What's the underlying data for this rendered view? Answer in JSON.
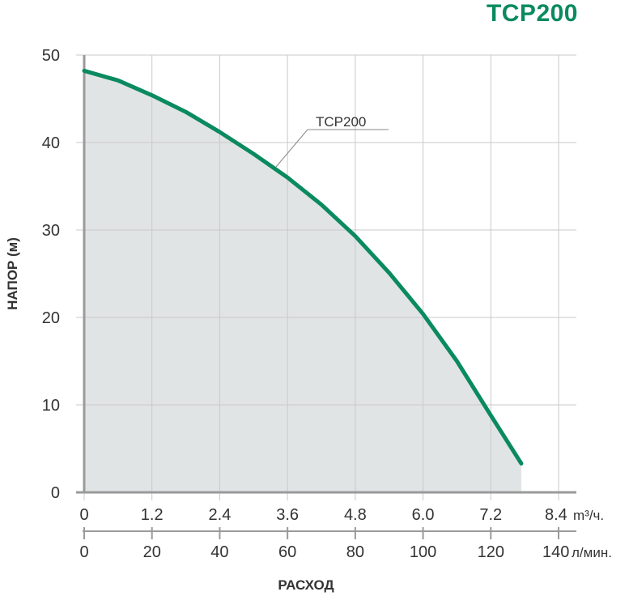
{
  "title": "TCP200",
  "colors": {
    "curve": "#0a8a5f",
    "fill": "#e1e4e5",
    "grid": "#c9c9c9",
    "axis": "#9a9a9a",
    "label_line": "#888888",
    "text": "#333333"
  },
  "chart_data": {
    "type": "area",
    "title": "TCP200",
    "series": [
      {
        "name": "TCP200",
        "x": [
          0,
          10,
          20,
          30,
          40,
          50,
          60,
          70,
          80,
          90,
          100,
          110,
          120,
          129
        ],
        "y": [
          48.2,
          47.1,
          45.4,
          43.5,
          41.2,
          38.7,
          36.0,
          32.9,
          29.3,
          25.1,
          20.4,
          15.0,
          8.8,
          3.3
        ]
      }
    ],
    "xlabel": "РАСХОД",
    "ylabel": "НАПОР (м)",
    "xlim": [
      0,
      140
    ],
    "ylim": [
      0,
      50
    ],
    "grid": true,
    "yticks": [
      "0",
      "10",
      "20",
      "30",
      "40",
      "50"
    ],
    "xticks_primary": [
      "0",
      "1.2",
      "2.4",
      "3.6",
      "4.8",
      "6.0",
      "7.2",
      "8.4"
    ],
    "xticks_primary_unit": "m³/ч.",
    "xticks_secondary": [
      "0",
      "20",
      "40",
      "60",
      "80",
      "100",
      "120",
      "140"
    ],
    "xticks_secondary_unit": "л/мин."
  }
}
